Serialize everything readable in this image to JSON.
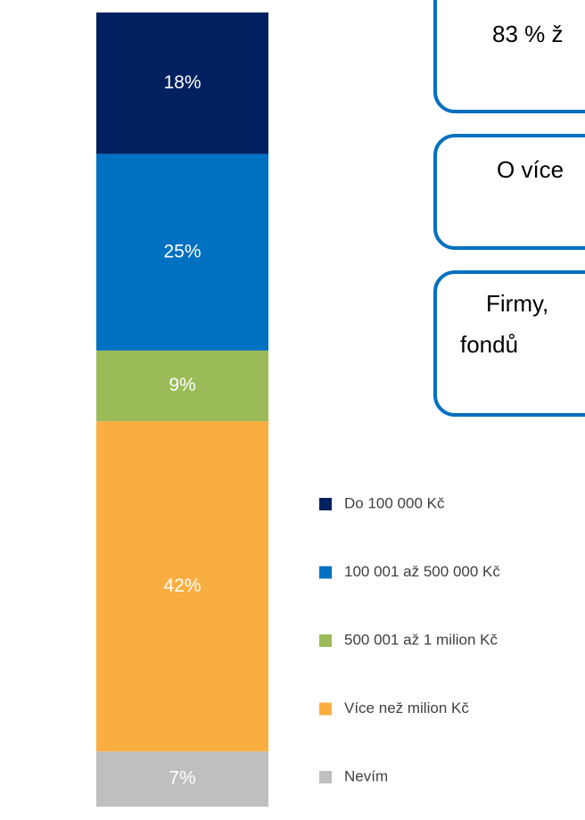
{
  "chart_data": {
    "type": "stacked-bar",
    "stacked": true,
    "series": [
      {
        "name": "Do 100 000 Kč",
        "color": "#002060",
        "values": [
          18
        ],
        "value_labels": [
          "18%"
        ]
      },
      {
        "name": "100 001 až 500 000 Kč",
        "color": "#0070c0",
        "values": [
          25
        ],
        "value_labels": [
          "25%"
        ]
      },
      {
        "name": "500 001 až 1 milion Kč",
        "color": "#9bbb59",
        "values": [
          9
        ],
        "value_labels": [
          "9%"
        ]
      },
      {
        "name": "Více než milion Kč",
        "color": "#fbae40",
        "values": [
          42
        ],
        "value_labels": [
          "42%"
        ]
      },
      {
        "name": "Nevím",
        "color": "#bfbfbf",
        "values": [
          7
        ],
        "value_labels": [
          "7%"
        ]
      }
    ],
    "legend": "right",
    "annotations": [
      {
        "lines": [
          "83 % ž"
        ]
      },
      {
        "lines": [
          "O více"
        ]
      },
      {
        "lines": [
          "Firmy,",
          "fondů"
        ]
      }
    ]
  }
}
